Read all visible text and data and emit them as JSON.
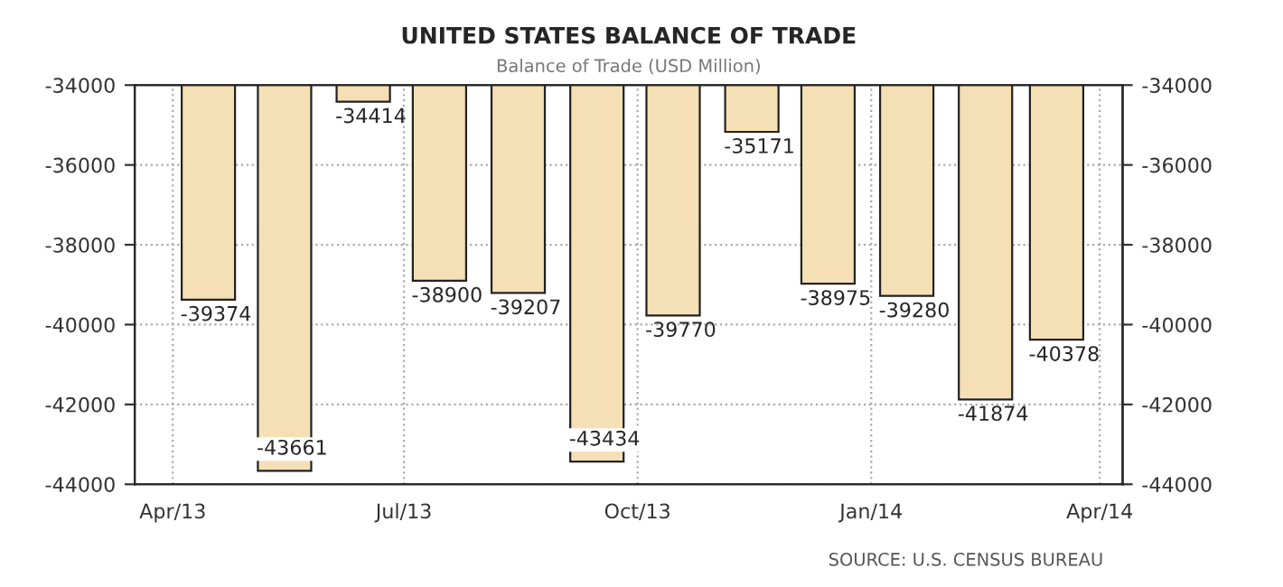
{
  "chart_data": {
    "type": "bar",
    "title": "UNITED STATES BALANCE OF TRADE",
    "subtitle": "Balance of Trade (USD Million)",
    "x": [
      "2013-04-15",
      "2013-05-15",
      "2013-06-15",
      "2013-07-15",
      "2013-08-15",
      "2013-09-15",
      "2013-10-15",
      "2013-11-15",
      "2013-12-15",
      "2014-01-15",
      "2014-02-15",
      "2014-03-15"
    ],
    "values": [
      -39374,
      -43661,
      -34414,
      -38900,
      -39207,
      -43434,
      -39770,
      -35171,
      -38975,
      -39280,
      -41874,
      -40378
    ],
    "color": "#f5dfb5",
    "data_labels": true,
    "xlim": [
      "2013-03-17",
      "2014-04-10"
    ],
    "xticks": [
      {
        "value": "2013-04-01",
        "label": "Apr/13"
      },
      {
        "value": "2013-07-01",
        "label": "Jul/13"
      },
      {
        "value": "2013-10-01",
        "label": "Oct/13"
      },
      {
        "value": "2014-01-01",
        "label": "Jan/14"
      },
      {
        "value": "2014-04-01",
        "label": "Apr/14"
      }
    ],
    "ylim": [
      -44000,
      -34000
    ],
    "yticks": [
      -44000,
      -42000,
      -40000,
      -38000,
      -36000,
      -34000
    ],
    "y2lim": [
      -44000,
      -34000
    ],
    "y2ticks": [
      -44000,
      -42000,
      -40000,
      -38000,
      -36000,
      -34000
    ],
    "grid": true,
    "annotations": [
      "SOURCE: U.S. CENSUS BUREAU"
    ]
  }
}
